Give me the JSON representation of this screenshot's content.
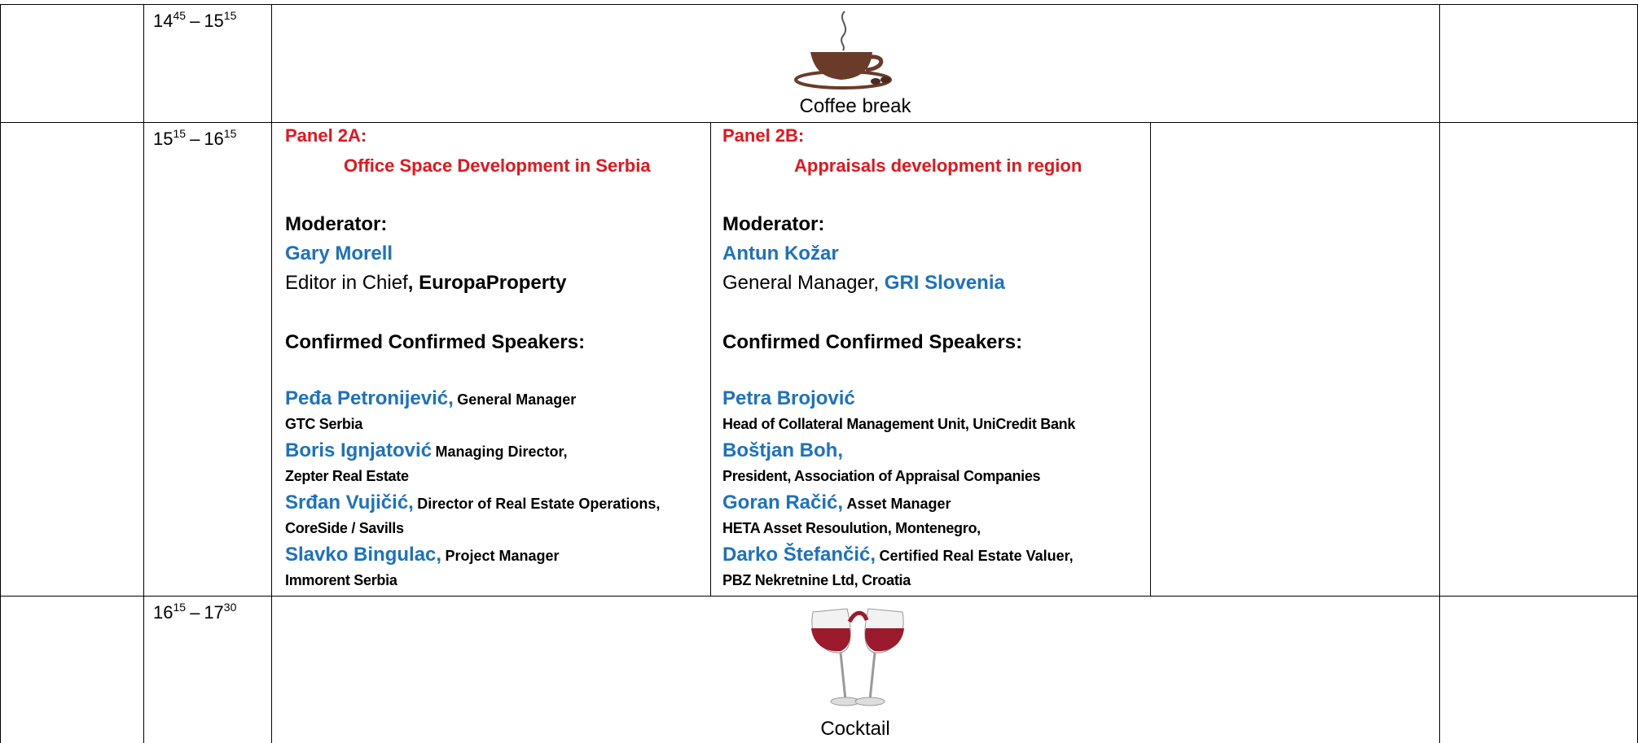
{
  "rows": [
    {
      "time": {
        "start_hour": "14",
        "start_minute": "45",
        "dash": "–",
        "end_hour": "15",
        "end_minute": "15"
      },
      "label": "Coffee break"
    },
    {
      "time": {
        "start_hour": "15",
        "start_minute": "15",
        "dash": "–",
        "end_hour": "16",
        "end_minute": "15"
      },
      "panels": [
        {
          "title": "Panel 2A:",
          "subtitle": "Office Space Development in Serbia",
          "moderator_heading": "Moderator:",
          "moderator_name": "Gary Morell",
          "moderator_role": [
            {
              "text": "Editor in Chief",
              "style": "plain"
            },
            {
              "text": ", EuropaProperty",
              "style": "bold"
            }
          ],
          "speakers_heading": "Confirmed Confirmed Speakers:",
          "speakers": [
            {
              "name": "Peđa Petronijević,",
              "inline": "General Manager",
              "line": "GTC Serbia"
            },
            {
              "name": "Boris Ignjatović",
              "inline": "Managing Director,",
              "line": "Zepter Real Estate"
            },
            {
              "name": "Srđan Vujičić,",
              "inline": "Director of Real Estate Operations,",
              "line": "CoreSide / Savills"
            },
            {
              "name": "Slavko Bingulac,",
              "inline": "Project Manager",
              "line": "Immorent Serbia"
            }
          ]
        },
        {
          "title": "Panel 2B:",
          "subtitle": "Appraisals development  in region",
          "moderator_heading": "Moderator:",
          "moderator_name": "Antun Kožar",
          "moderator_role": [
            {
              "text": "General Manager, ",
              "style": "plain"
            },
            {
              "text": "GRI Slovenia",
              "style": "blue"
            }
          ],
          "speakers_heading": "Confirmed Confirmed Speakers:",
          "speakers": [
            {
              "name": "Petra Brojović",
              "line": "Head of Collateral Management Unit, UniCredit Bank"
            },
            {
              "name": "Boštjan Boh,",
              "line": "President, Association of Appraisal Companies"
            },
            {
              "name": "Goran Račić,",
              "inline": "Asset Manager",
              "line": "HETA Asset Resoulution, Montenegro,"
            },
            {
              "name": "Darko Štefančić,",
              "inline": " Certified Real Estate Valuer,",
              "line": "PBZ Nekretnine Ltd, Croatia"
            }
          ]
        }
      ]
    },
    {
      "time": {
        "start_hour": "16",
        "start_minute": "15",
        "dash": "–",
        "end_hour": "17",
        "end_minute": "30"
      },
      "label": "Cocktail"
    }
  ]
}
